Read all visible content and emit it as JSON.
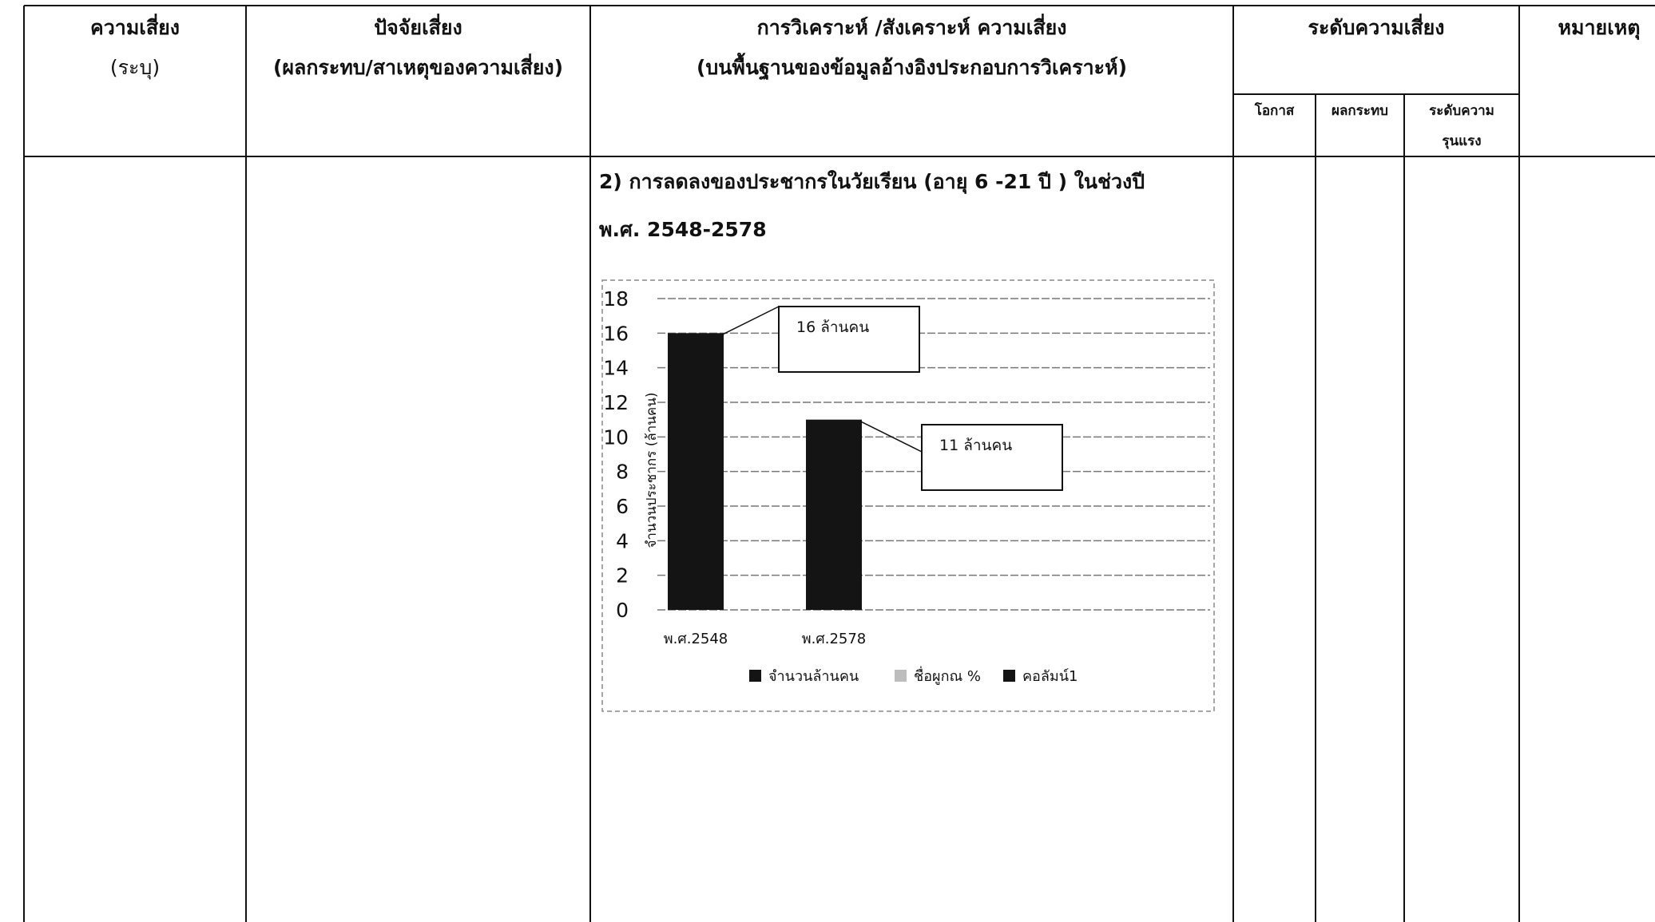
{
  "table": {
    "headers": {
      "risk_line1": "ความเสี่ยง",
      "risk_line2": "(ระบุ)",
      "factor_line1": "ปัจจัยเสี่ยง",
      "factor_line2": "(ผลกระทบ/สาเหตุของความเสี่ยง)",
      "analysis_line1": "การวิเคราะห์ /สังเคราะห์ ความเสี่ยง",
      "analysis_line2": "(บนพื้นฐานของข้อมูลอ้างอิงประกอบการวิเคราะห์)",
      "level": "ระดับความเสี่ยง",
      "note": "หมายเหตุ"
    },
    "subheaders": {
      "chance": "โอกาส",
      "impact": "ผลกระทบ",
      "severity_line1": "ระดับความ",
      "severity_line2": "รุนแรง"
    }
  },
  "analysis": {
    "intro_line1": "2) การลดลงของประชากรในวัยเรียน (อายุ 6 -21 ปี ) ในช่วงปี",
    "intro_line2": "พ.ศ. 2548-2578"
  },
  "chart_data": {
    "type": "bar",
    "categories": [
      "พ.ศ.2548",
      "พ.ศ.2578"
    ],
    "series": [
      {
        "name": "จำนวนล้านคน",
        "values": [
          16,
          11
        ]
      }
    ],
    "ylabel": "จำนวนประชากร (ล้านคน)",
    "ylim": [
      0,
      18
    ],
    "yticks": [
      "0",
      "2",
      "4",
      "6",
      "8",
      "10",
      "12",
      "14",
      "16",
      "18"
    ],
    "grid": true,
    "data_labels": [
      "16 ล้านคน",
      "11 ล้านคน"
    ],
    "legend": {
      "position": "bottom",
      "entries": [
        "จำนวนล้านคน",
        "ชื่อผูกณ %",
        "คอลัมน์1"
      ]
    },
    "bar_color": "#141414"
  }
}
